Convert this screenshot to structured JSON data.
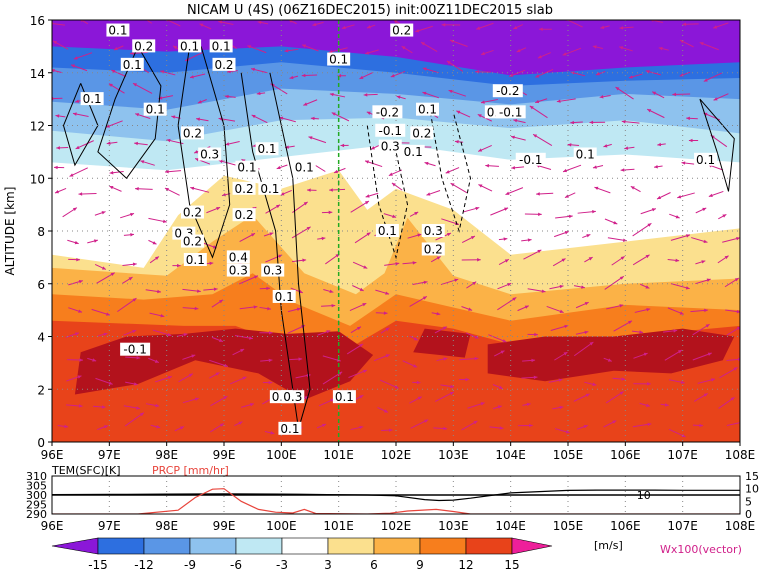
{
  "title": "NICAM U (4S) (06Z16DEC2015) init:00Z11DEC2015 slab",
  "main_plot": {
    "type": "heatmap",
    "ylabel": "ALTITUDE [km]",
    "x_ticks": [
      "96E",
      "97E",
      "98E",
      "99E",
      "100E",
      "101E",
      "102E",
      "103E",
      "104E",
      "105E",
      "106E",
      "107E",
      "108E"
    ],
    "y_ticks": [
      "0",
      "2",
      "4",
      "6",
      "8",
      "10",
      "12",
      "14",
      "16"
    ],
    "xlim": [
      96,
      108
    ],
    "ylim": [
      0,
      16
    ],
    "grid": true,
    "vertical_marker_lon": 101,
    "vertical_marker_color": "#22aa22",
    "contour_labels": [
      {
        "text": "0.1",
        "lon": 97.15,
        "alt": 15.6
      },
      {
        "text": "0.2",
        "lon": 97.6,
        "alt": 15.0
      },
      {
        "text": "0.1",
        "lon": 97.4,
        "alt": 14.3
      },
      {
        "text": "0.1",
        "lon": 98.4,
        "alt": 15.0
      },
      {
        "text": "0.1",
        "lon": 98.95,
        "alt": 15.0
      },
      {
        "text": "0.2",
        "lon": 99.0,
        "alt": 14.3
      },
      {
        "text": "0.1",
        "lon": 96.7,
        "alt": 13.0
      },
      {
        "text": "0.1",
        "lon": 97.8,
        "alt": 12.6
      },
      {
        "text": "0.2",
        "lon": 98.45,
        "alt": 11.7
      },
      {
        "text": "0.3",
        "lon": 98.75,
        "alt": 10.9
      },
      {
        "text": "0.1",
        "lon": 99.75,
        "alt": 11.1
      },
      {
        "text": "0.1",
        "lon": 99.4,
        "alt": 10.4
      },
      {
        "text": "0.2",
        "lon": 99.35,
        "alt": 9.6
      },
      {
        "text": "0.1",
        "lon": 99.8,
        "alt": 9.6
      },
      {
        "text": "0.1",
        "lon": 100.4,
        "alt": 10.4
      },
      {
        "text": "0.2",
        "lon": 98.45,
        "alt": 8.7
      },
      {
        "text": "0.3",
        "lon": 98.3,
        "alt": 7.9
      },
      {
        "text": "0.2",
        "lon": 98.45,
        "alt": 7.6
      },
      {
        "text": "0.2",
        "lon": 99.35,
        "alt": 8.6
      },
      {
        "text": "0.1",
        "lon": 98.5,
        "alt": 6.9
      },
      {
        "text": "0.4",
        "lon": 99.25,
        "alt": 7.0
      },
      {
        "text": "0.3",
        "lon": 99.25,
        "alt": 6.5
      },
      {
        "text": "0.3",
        "lon": 99.85,
        "alt": 6.5
      },
      {
        "text": "0.1",
        "lon": 100.05,
        "alt": 5.5
      },
      {
        "text": "0.1",
        "lon": 100.0,
        "alt": 1.7
      },
      {
        "text": "0.3",
        "lon": 100.2,
        "alt": 1.7
      },
      {
        "text": "0.1",
        "lon": 100.15,
        "alt": 0.5
      },
      {
        "text": "0.1",
        "lon": 101.0,
        "alt": 14.5
      },
      {
        "text": "-0.1",
        "lon": 97.45,
        "alt": 3.5
      },
      {
        "text": "0.1",
        "lon": 101.1,
        "alt": 1.7
      },
      {
        "text": "0.2",
        "lon": 102.1,
        "alt": 15.6
      },
      {
        "text": "-0.2",
        "lon": 101.85,
        "alt": 12.5
      },
      {
        "text": "-0.1",
        "lon": 101.9,
        "alt": 11.8
      },
      {
        "text": "0.2",
        "lon": 102.45,
        "alt": 11.7
      },
      {
        "text": "0.3",
        "lon": 101.9,
        "alt": 11.2
      },
      {
        "text": "0.1",
        "lon": 102.55,
        "alt": 12.6
      },
      {
        "text": "0.1",
        "lon": 102.3,
        "alt": 11.0
      },
      {
        "text": "0.1",
        "lon": 101.85,
        "alt": 8.0
      },
      {
        "text": "0.3",
        "lon": 102.65,
        "alt": 8.0
      },
      {
        "text": "0.2",
        "lon": 102.65,
        "alt": 7.3
      },
      {
        "text": "-0.2",
        "lon": 103.95,
        "alt": 13.3
      },
      {
        "text": "0.1",
        "lon": 103.75,
        "alt": 12.5
      },
      {
        "text": "-0.1",
        "lon": 104.0,
        "alt": 12.5
      },
      {
        "text": "-0.1",
        "lon": 104.35,
        "alt": 10.7
      },
      {
        "text": "0.1",
        "lon": 105.3,
        "alt": 10.9
      },
      {
        "text": "0.1",
        "lon": 107.4,
        "alt": 10.7
      }
    ]
  },
  "sub_plot": {
    "type": "line",
    "label_left": "TEM(SFC)[K]",
    "label_right": "PRCP [mm/hr]",
    "label_right_color": "#e8453c",
    "left_ticks": [
      "310",
      "305",
      "300",
      "295",
      "290"
    ],
    "right_ticks": [
      "15",
      "10",
      "5",
      "0"
    ],
    "x_ticks": [
      "96E",
      "97E",
      "98E",
      "99E",
      "100E",
      "101E",
      "102E",
      "103E",
      "104E",
      "105E",
      "106E",
      "107E",
      "108E"
    ],
    "temperature_series_color": "#000000",
    "precipitation_series_color": "#e8453c",
    "reference_label": "10",
    "reference_label_lon": 106.2
  },
  "chart_data": [
    {
      "type": "heatmap",
      "title": "NICAM U (4S) (06Z16DEC2015) init:00Z11DEC2015 slab",
      "xlabel": "",
      "ylabel": "ALTITUDE [km]",
      "x": [
        96,
        97,
        98,
        99,
        100,
        101,
        102,
        103,
        104,
        105,
        106,
        107,
        108
      ],
      "y": [
        0,
        2,
        4,
        6,
        8,
        10,
        12,
        14,
        16
      ],
      "xlim": [
        96,
        108
      ],
      "ylim": [
        0,
        16
      ],
      "grid": true,
      "colorbar_levels": [
        -15,
        -12,
        -9,
        -6,
        -3,
        3,
        6,
        9,
        12,
        15
      ],
      "colorbar_unit": "[m/s]",
      "colorbar_colors": [
        "#8b17d8",
        "#2d6fe0",
        "#5a96e6",
        "#8ec2ee",
        "#bfe8f3",
        "#ffffff",
        "#fbe08e",
        "#fbb247",
        "#f77e1d",
        "#e8431a",
        "#b3121c",
        "#ee1f9a"
      ],
      "vector_legend": "Wx100(vector)"
    },
    {
      "type": "line",
      "xlim": [
        96,
        108
      ],
      "series": [
        {
          "name": "TEM(SFC)[K]",
          "x": [
            96,
            97,
            98,
            99,
            100,
            100.3,
            100.8,
            101.5,
            102.0,
            102.5,
            102.75,
            103.0,
            103.3,
            103.6,
            104.0,
            104.5,
            105.0,
            105.5,
            106.0,
            106.5,
            107.0,
            108.0
          ],
          "values": [
            300.2,
            300.3,
            300.5,
            300.6,
            300.5,
            300.4,
            300.2,
            300.0,
            299.6,
            297.6,
            297.1,
            297.3,
            298.3,
            299.5,
            301.1,
            301.8,
            302.4,
            302.6,
            302.6,
            302.6,
            302.5,
            302.5
          ],
          "ylim": [
            290,
            310
          ]
        },
        {
          "name": "PRCP [mm/hr]",
          "x": [
            96,
            97.5,
            98.2,
            98.5,
            98.8,
            99.0,
            99.3,
            99.6,
            99.9,
            100.2,
            100.4,
            100.6,
            101.5,
            101.9,
            102.2,
            102.7,
            103.0,
            103.3,
            104.0,
            108.0
          ],
          "values": [
            0,
            0,
            1.5,
            6.5,
            9.8,
            10.0,
            5.0,
            1.8,
            0.7,
            0.4,
            1.8,
            0.2,
            0,
            0.3,
            1.2,
            1.8,
            1.0,
            0,
            0,
            0
          ],
          "ylim": [
            0,
            15
          ]
        }
      ]
    }
  ],
  "colorbar": {
    "tick_labels": [
      "-15",
      "-12",
      "-9",
      "-6",
      "-3",
      "3",
      "6",
      "9",
      "12",
      "15"
    ],
    "unit": "[m/s]",
    "vector_legend": "Wx100(vector)"
  }
}
